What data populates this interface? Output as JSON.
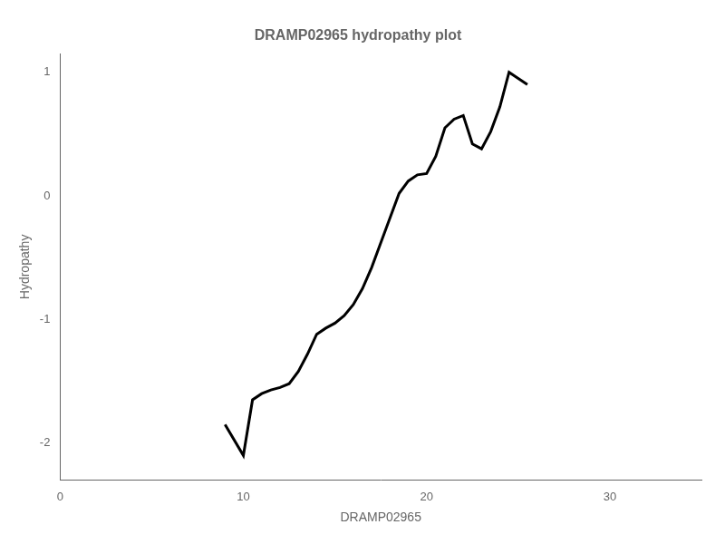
{
  "chart_data": {
    "type": "line",
    "title": "DRAMP02965 hydropathy plot",
    "xlabel": "DRAMP02965",
    "ylabel": "Hydropathy",
    "x": [
      9.0,
      10.0,
      10.5,
      11.0,
      11.5,
      12.0,
      12.5,
      13.0,
      13.5,
      14.0,
      14.5,
      15.0,
      15.5,
      16.0,
      16.5,
      17.0,
      17.5,
      18.0,
      18.5,
      19.0,
      19.5,
      20.0,
      20.5,
      21.0,
      21.5,
      22.0,
      22.5,
      23.0,
      23.5,
      24.0,
      24.5,
      25.0,
      25.5
    ],
    "values": [
      -1.85,
      -2.1,
      -1.65,
      -1.6,
      -1.57,
      -1.55,
      -1.52,
      -1.42,
      -1.28,
      -1.12,
      -1.07,
      -1.03,
      -0.97,
      -0.88,
      -0.75,
      -0.58,
      -0.38,
      -0.18,
      0.02,
      0.12,
      0.17,
      0.18,
      0.32,
      0.55,
      0.62,
      0.65,
      0.42,
      0.38,
      0.52,
      0.72,
      1.0,
      0.95,
      0.9
    ],
    "color": "#000000",
    "xlim": [
      0,
      35
    ],
    "ylim": [
      -2.3,
      1.15
    ],
    "xticks": [
      0,
      10,
      20,
      30
    ],
    "yticks": [
      -2,
      -1,
      0,
      1
    ],
    "grid": false
  }
}
